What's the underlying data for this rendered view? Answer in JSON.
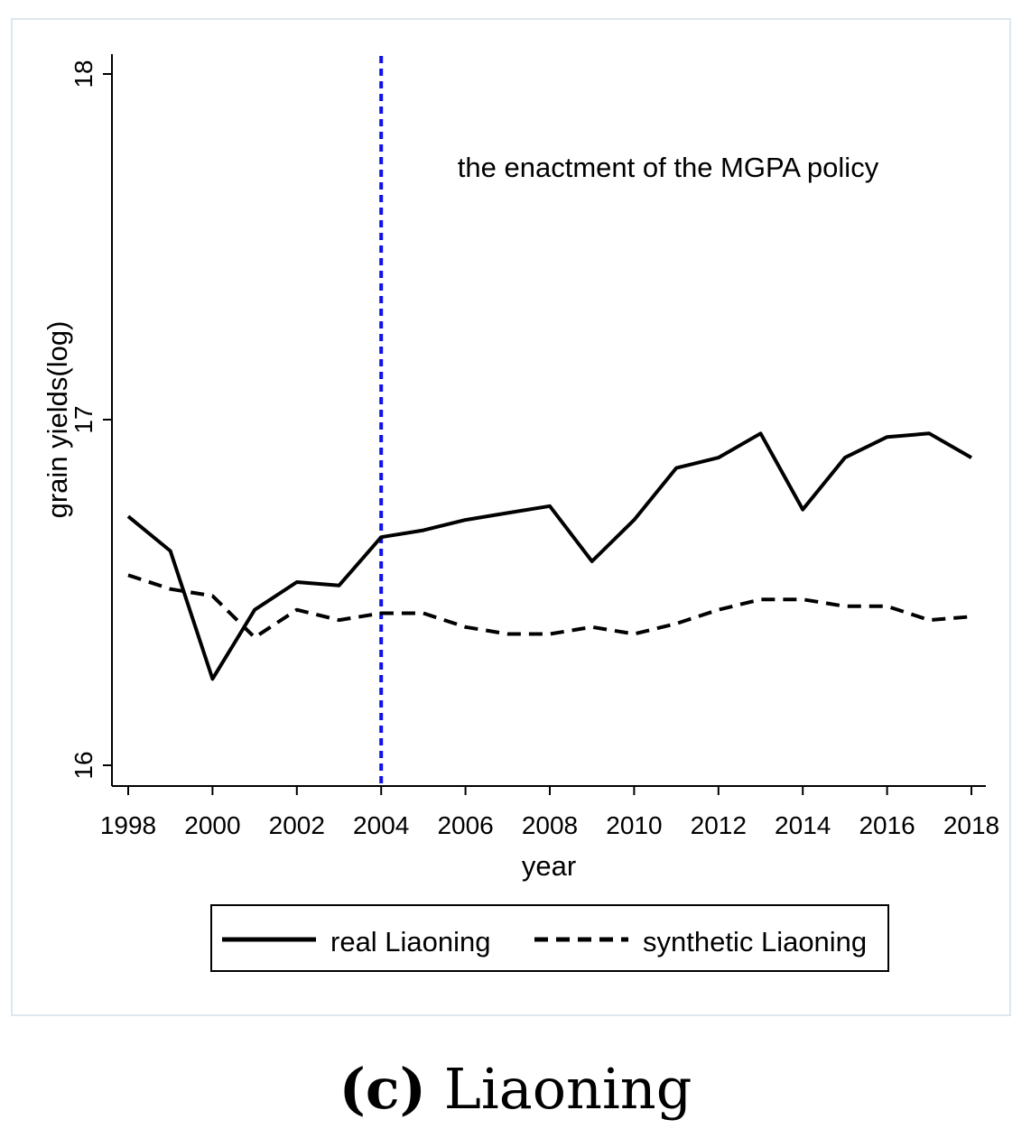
{
  "chart_data": {
    "type": "line",
    "x": [
      1998,
      1999,
      2000,
      2001,
      2002,
      2003,
      2004,
      2005,
      2006,
      2007,
      2008,
      2009,
      2010,
      2011,
      2012,
      2013,
      2014,
      2015,
      2016,
      2017,
      2018
    ],
    "series": [
      {
        "name": "real Liaoning",
        "style": "solid",
        "color": "#000000",
        "values": [
          16.72,
          16.62,
          16.25,
          16.45,
          16.53,
          16.52,
          16.66,
          16.68,
          16.71,
          16.73,
          16.75,
          16.59,
          16.71,
          16.86,
          16.89,
          16.96,
          16.74,
          16.89,
          16.95,
          16.96,
          16.89
        ]
      },
      {
        "name": "synthetic Liaoning",
        "style": "dashed",
        "color": "#000000",
        "values": [
          16.55,
          16.51,
          16.49,
          16.37,
          16.45,
          16.42,
          16.44,
          16.44,
          16.4,
          16.38,
          16.38,
          16.4,
          16.38,
          16.41,
          16.45,
          16.48,
          16.48,
          16.46,
          16.46,
          16.42,
          16.43
        ]
      }
    ],
    "xlabel": "year",
    "ylabel": "grain yields(log)",
    "xlim": [
      1998,
      2018
    ],
    "ylim": [
      16,
      18
    ],
    "xticks": [
      "1998",
      "2000",
      "2002",
      "2004",
      "2006",
      "2008",
      "2010",
      "2012",
      "2014",
      "2016",
      "2018"
    ],
    "yticks": [
      "16",
      "17",
      "18"
    ],
    "vline": {
      "x": 2004,
      "color": "#1010ee",
      "style": "dotted"
    },
    "annotation": "the enactment of the MGPA policy",
    "legend_position": "bottom",
    "grid": false
  },
  "caption": {
    "label": "(c)",
    "text": "Liaoning"
  }
}
